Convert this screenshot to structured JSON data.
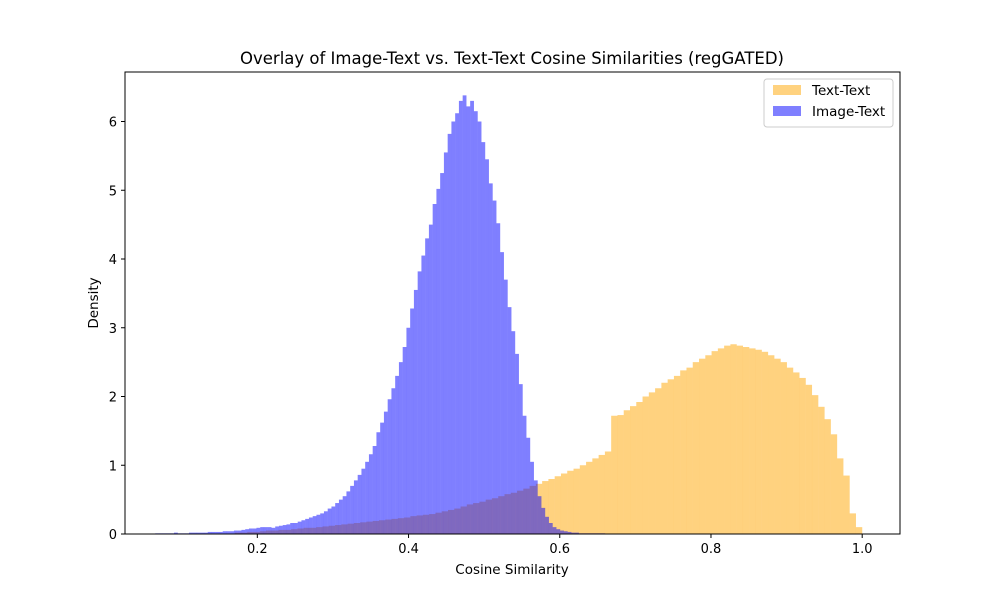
{
  "chart_data": {
    "type": "bar",
    "title": "Overlay of Image-Text vs. Text-Text Cosine Similarities (regGATED)",
    "xlabel": "Cosine Similarity",
    "ylabel": "Density",
    "xlim": [
      0.025,
      1.05
    ],
    "ylim": [
      0,
      6.72
    ],
    "x_ticks": [
      {
        "value": 0.2,
        "label": "0.2"
      },
      {
        "value": 0.4,
        "label": "0.4"
      },
      {
        "value": 0.6,
        "label": "0.6"
      },
      {
        "value": 0.8,
        "label": "0.8"
      },
      {
        "value": 1.0,
        "label": "1.0"
      }
    ],
    "y_ticks": [
      {
        "value": 0,
        "label": "0"
      },
      {
        "value": 1,
        "label": "1"
      },
      {
        "value": 2,
        "label": "2"
      },
      {
        "value": 3,
        "label": "3"
      },
      {
        "value": 4,
        "label": "4"
      },
      {
        "value": 5,
        "label": "5"
      },
      {
        "value": 6,
        "label": "6"
      }
    ],
    "legend_position": "top-right",
    "series": [
      {
        "name": "Text-Text",
        "color": "#FFA500",
        "alpha": 0.5,
        "x_min": 0.17,
        "x_max": 1.0,
        "bins": 100,
        "density": [
          0.02,
          0.02,
          0.03,
          0.03,
          0.04,
          0.05,
          0.05,
          0.06,
          0.06,
          0.07,
          0.08,
          0.09,
          0.09,
          0.1,
          0.11,
          0.12,
          0.13,
          0.14,
          0.15,
          0.16,
          0.17,
          0.18,
          0.19,
          0.2,
          0.21,
          0.22,
          0.23,
          0.24,
          0.26,
          0.27,
          0.28,
          0.29,
          0.31,
          0.33,
          0.35,
          0.37,
          0.4,
          0.43,
          0.45,
          0.47,
          0.5,
          0.52,
          0.55,
          0.58,
          0.6,
          0.63,
          0.66,
          0.7,
          0.73,
          0.77,
          0.8,
          0.84,
          0.88,
          0.92,
          0.95,
          1.0,
          1.05,
          1.1,
          1.15,
          1.2,
          1.72,
          1.73,
          1.8,
          1.86,
          1.92,
          2.0,
          2.06,
          2.12,
          2.2,
          2.25,
          2.3,
          2.38,
          2.42,
          2.5,
          2.55,
          2.6,
          2.66,
          2.7,
          2.74,
          2.76,
          2.74,
          2.72,
          2.7,
          2.68,
          2.65,
          2.6,
          2.55,
          2.5,
          2.42,
          2.35,
          2.27,
          2.17,
          2.02,
          1.85,
          1.67,
          1.45,
          1.1,
          0.85,
          0.3,
          0.1
        ]
      },
      {
        "name": "Image-Text",
        "color": "#0000FF",
        "alpha": 0.5,
        "x_min": 0.065,
        "x_max": 0.66,
        "bins": 120,
        "density": [
          0.01,
          0.01,
          0.01,
          0.01,
          0.01,
          0.02,
          0.01,
          0.01,
          0.01,
          0.02,
          0.02,
          0.02,
          0.02,
          0.02,
          0.03,
          0.03,
          0.03,
          0.03,
          0.04,
          0.04,
          0.04,
          0.05,
          0.05,
          0.06,
          0.07,
          0.08,
          0.08,
          0.09,
          0.1,
          0.1,
          0.1,
          0.09,
          0.11,
          0.12,
          0.13,
          0.14,
          0.16,
          0.16,
          0.18,
          0.2,
          0.22,
          0.24,
          0.26,
          0.28,
          0.3,
          0.33,
          0.37,
          0.4,
          0.45,
          0.5,
          0.55,
          0.62,
          0.7,
          0.78,
          0.86,
          0.95,
          1.05,
          1.16,
          1.28,
          1.48,
          1.62,
          1.78,
          1.96,
          2.12,
          2.3,
          2.5,
          2.72,
          3.0,
          3.28,
          3.55,
          3.82,
          4.05,
          4.3,
          4.5,
          4.8,
          5.02,
          5.25,
          5.55,
          5.82,
          6.0,
          6.12,
          6.3,
          6.38,
          6.22,
          6.3,
          6.15,
          6.0,
          5.7,
          5.45,
          5.1,
          4.85,
          4.52,
          4.1,
          3.7,
          3.3,
          2.95,
          2.62,
          2.18,
          1.72,
          1.4,
          1.05,
          0.78,
          0.55,
          0.38,
          0.25,
          0.16,
          0.1,
          0.07,
          0.05,
          0.04,
          0.03,
          0.02,
          0.02,
          0.01,
          0.01,
          0.01,
          0.01,
          0.01,
          0.01,
          0.01
        ]
      }
    ]
  }
}
